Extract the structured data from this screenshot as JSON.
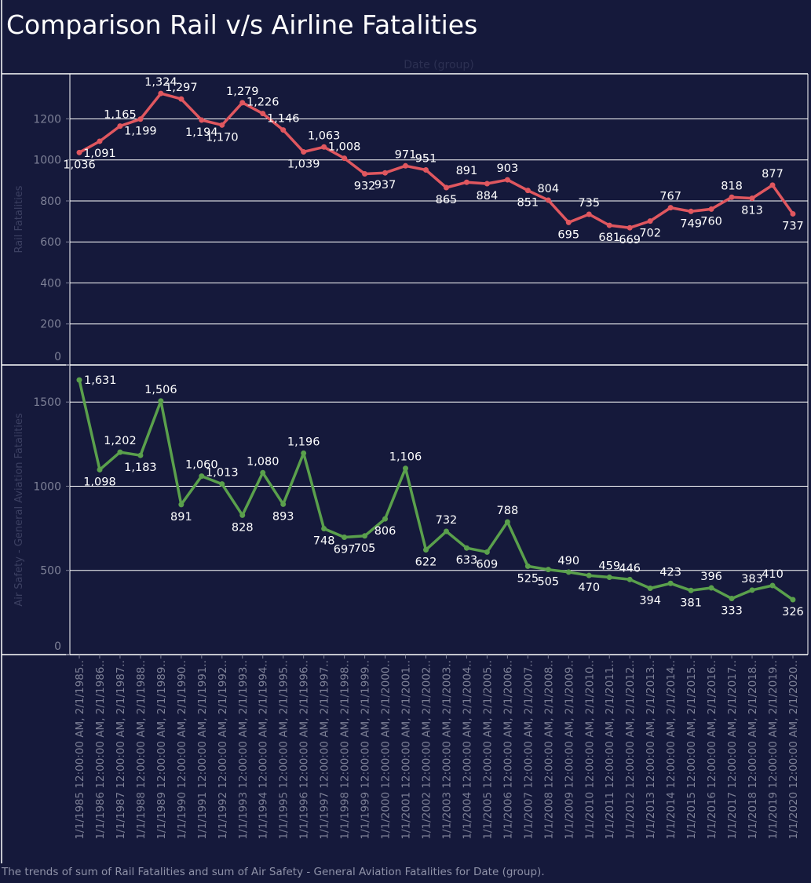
{
  "title": "Comparison Rail v/s Airline Fatalities",
  "caption": "The trends of sum of Rail Fatalities and sum of Air Safety - General Aviation Fatalities for Date (group).",
  "colors": {
    "background": "#15193b",
    "rail_line": "#e0575f",
    "air_line": "#5aa04c",
    "gridline": "#ffffff",
    "axis_text": "#7d8096",
    "label_text": "#ffffff"
  },
  "chart_data": {
    "type": "line",
    "x_title": "Date (group)",
    "x": [
      "1/1/1985 12:00:00 AM, 2/1/1985..",
      "1/1/1986 12:00:00 AM, 2/1/1986..",
      "1/1/1987 12:00:00 AM, 2/1/1987..",
      "1/1/1988 12:00:00 AM, 2/1/1988..",
      "1/1/1989 12:00:00 AM, 2/1/1989..",
      "1/1/1990 12:00:00 AM, 2/1/1990..",
      "1/1/1991 12:00:00 AM, 2/1/1991..",
      "1/1/1992 12:00:00 AM, 2/1/1992..",
      "1/1/1993 12:00:00 AM, 2/1/1993..",
      "1/1/1994 12:00:00 AM, 2/1/1994..",
      "1/1/1995 12:00:00 AM, 2/1/1995..",
      "1/1/1996 12:00:00 AM, 2/1/1996..",
      "1/1/1997 12:00:00 AM, 2/1/1997..",
      "1/1/1998 12:00:00 AM, 2/1/1998..",
      "1/1/1999 12:00:00 AM, 2/1/1999..",
      "1/1/2000 12:00:00 AM, 2/1/2000..",
      "1/1/2001 12:00:00 AM, 2/1/2001..",
      "1/1/2002 12:00:00 AM, 2/1/2002..",
      "1/1/2003 12:00:00 AM, 2/1/2003..",
      "1/1/2004 12:00:00 AM, 2/1/2004..",
      "1/1/2005 12:00:00 AM, 2/1/2005..",
      "1/1/2006 12:00:00 AM, 2/1/2006..",
      "1/1/2007 12:00:00 AM, 2/1/2007..",
      "1/1/2008 12:00:00 AM, 2/1/2008..",
      "1/1/2009 12:00:00 AM, 2/1/2009..",
      "1/1/2010 12:00:00 AM, 2/1/2010..",
      "1/1/2011 12:00:00 AM, 2/1/2011..",
      "1/1/2012 12:00:00 AM, 2/1/2012..",
      "1/1/2013 12:00:00 AM, 2/1/2013..",
      "1/1/2014 12:00:00 AM, 2/1/2014..",
      "1/1/2015 12:00:00 AM, 2/1/2015..",
      "1/1/2016 12:00:00 AM, 2/1/2016..",
      "1/1/2017 12:00:00 AM, 2/1/2017..",
      "1/1/2018 12:00:00 AM, 2/1/2018..",
      "1/1/2019 12:00:00 AM, 2/1/2019..",
      "1/1/2020 12:00:00 AM, 2/1/2020.."
    ],
    "panels": [
      {
        "ylabel": "Rail Fatalities",
        "ylim": [
          0,
          1420
        ],
        "yticks": [
          0,
          200,
          400,
          600,
          800,
          1000,
          1200
        ],
        "grid": true,
        "series": [
          {
            "name": "Rail Fatalities",
            "color": "#e0575f",
            "values": [
              1036,
              1091,
              1165,
              1199,
              1324,
              1297,
              1194,
              1170,
              1279,
              1226,
              1146,
              1039,
              1063,
              1008,
              932,
              937,
              971,
              951,
              865,
              891,
              884,
              903,
              851,
              804,
              695,
              735,
              681,
              669,
              702,
              767,
              749,
              760,
              818,
              813,
              877,
              737
            ],
            "labels": [
              "1,036",
              "1,091",
              "1,165",
              "1,199",
              "1,324",
              "1,297",
              "1,194",
              "1,170",
              "1,279",
              "1,226",
              "1,146",
              "1,039",
              "1,063",
              "1,008",
              "932",
              "937",
              "971",
              "951",
              "865",
              "891",
              "884",
              "903",
              "851",
              "804",
              "695",
              "735",
              "681",
              "669",
              "702",
              "767",
              "749",
              "760",
              "818",
              "813",
              "877",
              "737"
            ],
            "label_positions": [
              "below",
              "below",
              "above",
              "below",
              "above",
              "above",
              "below",
              "below",
              "above",
              "above",
              "above",
              "below",
              "above",
              "above",
              "below",
              "below",
              "above",
              "above",
              "below",
              "above",
              "below",
              "above",
              "below",
              "above",
              "below",
              "above",
              "below",
              "below",
              "below",
              "above",
              "below",
              "below",
              "above",
              "below",
              "above",
              "below"
            ]
          }
        ]
      },
      {
        "ylabel": "Air Safety - General Aviation Fatalities",
        "ylim": [
          0,
          1720
        ],
        "yticks": [
          0,
          500,
          1000,
          1500
        ],
        "grid": true,
        "series": [
          {
            "name": "Air Safety - General Aviation Fatalities",
            "color": "#5aa04c",
            "values": [
              1631,
              1098,
              1202,
              1183,
              1506,
              891,
              1060,
              1013,
              828,
              1080,
              893,
              1196,
              748,
              697,
              705,
              806,
              1106,
              622,
              732,
              633,
              609,
              788,
              525,
              505,
              490,
              470,
              459,
              446,
              394,
              423,
              381,
              396,
              333,
              383,
              410,
              326
            ],
            "labels": [
              "1,631",
              "1,098",
              "1,202",
              "1,183",
              "1,506",
              "891",
              "1,060",
              "1,013",
              "828",
              "1,080",
              "893",
              "1,196",
              "748",
              "697",
              "705",
              "806",
              "1,106",
              "622",
              "732",
              "633",
              "609",
              "788",
              "525",
              "505",
              "490",
              "470",
              "459",
              "446",
              "394",
              "423",
              "381",
              "396",
              "333",
              "383",
              "410",
              "326"
            ],
            "label_positions": [
              "right",
              "below",
              "above",
              "below",
              "above",
              "below",
              "above",
              "above",
              "below",
              "above",
              "below",
              "above",
              "below",
              "below",
              "below",
              "below",
              "above",
              "below",
              "above",
              "below",
              "below",
              "above",
              "below",
              "below",
              "above",
              "below",
              "above",
              "above",
              "below",
              "above",
              "below",
              "above",
              "below",
              "above",
              "above",
              "below"
            ]
          }
        ]
      }
    ]
  }
}
